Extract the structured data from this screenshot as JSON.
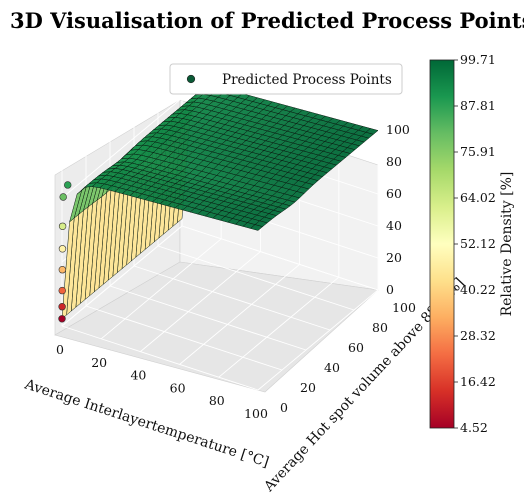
{
  "chart_data": {
    "type": "scatter",
    "title": "3D Visualisation of Predicted Process Points",
    "xlabel": "Average Interlayertemperature [°C]",
    "ylabel": "Average Hot spot volume above 880 [%]",
    "zlabel": "",
    "xticks": [
      "0",
      "20",
      "40",
      "60",
      "80",
      "100"
    ],
    "yticks": [
      "0",
      "20",
      "40",
      "60",
      "80",
      "100"
    ],
    "zticks": [
      "0",
      "20",
      "40",
      "60",
      "80",
      "100"
    ],
    "xlim": [
      0,
      100
    ],
    "ylim": [
      0,
      100
    ],
    "zlim": [
      0,
      100
    ],
    "grid": true,
    "legend_position": "top-right",
    "series": [
      {
        "name": "Predicted Process Points",
        "color_by": "Relative Density [%]",
        "description_points": "dense grid of points forming a surface; near x≈0 density rises steeply from ~5 to ~90, then plateaus near 95–100",
        "x": [
          0,
          0,
          0,
          0,
          0,
          0,
          0,
          2,
          4,
          6,
          10,
          20,
          40,
          60,
          80,
          100
        ],
        "y": [
          0,
          2,
          4,
          6,
          8,
          10,
          20,
          30,
          40,
          50,
          60,
          70,
          80,
          90,
          95,
          100
        ],
        "z": [
          4.52,
          12,
          22,
          35,
          48,
          62,
          80,
          88,
          92,
          95,
          97,
          98,
          99,
          99.5,
          99.7,
          99.71
        ]
      }
    ],
    "colorbar": {
      "label": "Relative Density [%]",
      "colormap": "RdYlGn",
      "min": 4.52,
      "max": 99.71,
      "ticks": [
        "99.71",
        "87.81",
        "75.91",
        "64.02",
        "52.12",
        "40.22",
        "28.32",
        "16.42",
        "4.52"
      ]
    },
    "colors": {
      "low": "#a50026",
      "mid": "#ffffbf",
      "high": "#006837",
      "legend_marker": "#0b5a36"
    }
  }
}
